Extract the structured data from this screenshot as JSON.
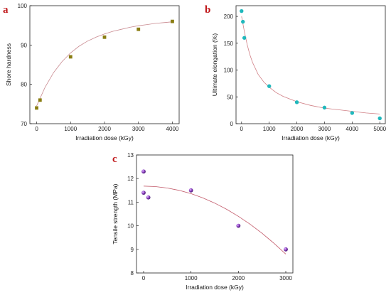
{
  "chart_data": [
    {
      "type": "scatter",
      "panel_label": "a",
      "xlabel": "Irradiation dose (kGy)",
      "ylabel": "Shore hardness",
      "xlim": [
        -200,
        4200
      ],
      "ylim": [
        70,
        100
      ],
      "xticks": [
        0,
        1000,
        2000,
        3000,
        4000
      ],
      "yticks": [
        70,
        80,
        90,
        100
      ],
      "marker": "square",
      "marker_color": "#8a7d12",
      "fit_color": "#c98a90",
      "series": [
        {
          "x": [
            0,
            100,
            1000,
            2000,
            3000,
            4000
          ],
          "y": [
            74,
            76,
            87,
            92,
            94,
            96
          ]
        }
      ],
      "fit": {
        "x": [
          0,
          250,
          500,
          750,
          1000,
          1250,
          1500,
          1750,
          2000,
          2250,
          2500,
          2750,
          3000,
          3250,
          3500,
          3750,
          4000
        ],
        "y": [
          74.5,
          79.3,
          83.0,
          85.8,
          88.0,
          89.7,
          91.0,
          92.0,
          92.8,
          93.5,
          94.0,
          94.5,
          94.9,
          95.2,
          95.5,
          95.7,
          95.9
        ]
      },
      "grid": false
    },
    {
      "type": "scatter",
      "panel_label": "b",
      "xlabel": "Irradiation dose (kGy)",
      "ylabel": "Ultimate elongation (%)",
      "xlim": [
        -200,
        5200
      ],
      "ylim": [
        0,
        220
      ],
      "xticks": [
        0,
        1000,
        2000,
        3000,
        4000,
        5000
      ],
      "yticks": [
        0,
        50,
        100,
        150,
        200
      ],
      "marker": "circle",
      "marker_color": "#20b8bc",
      "fit_color": "#d07f85",
      "series": [
        {
          "x": [
            0,
            50,
            100,
            1000,
            2000,
            3000,
            4000,
            5000
          ],
          "y": [
            210,
            190,
            160,
            70,
            40,
            30,
            20,
            10
          ]
        }
      ],
      "fit": {
        "x": [
          0,
          100,
          200,
          300,
          400,
          600,
          800,
          1000,
          1250,
          1500,
          2000,
          2500,
          3000,
          3500,
          4000,
          4500,
          5000
        ],
        "y": [
          200,
          172,
          148,
          129,
          114,
          92,
          78,
          68,
          58,
          51,
          41,
          34,
          29,
          26,
          23,
          20,
          18
        ]
      },
      "grid": false
    },
    {
      "type": "scatter",
      "panel_label": "c",
      "xlabel": "Irradiation dose (kGy)",
      "ylabel": "Tensile strength (MPa)",
      "xlim": [
        -150,
        3150
      ],
      "ylim": [
        8,
        13
      ],
      "xticks": [
        0,
        1000,
        2000,
        3000
      ],
      "yticks": [
        8,
        9,
        10,
        11,
        12,
        13
      ],
      "marker": "sphere",
      "marker_color": "#8e3fc4",
      "fit_color": "#c25a6a",
      "series": [
        {
          "x": [
            0,
            0,
            100,
            1000,
            2000,
            3000
          ],
          "y": [
            12.3,
            11.4,
            11.2,
            11.5,
            10.0,
            9.0
          ]
        }
      ],
      "fit": {
        "x": [
          0,
          250,
          500,
          750,
          1000,
          1250,
          1500,
          1750,
          2000,
          2250,
          2500,
          2750,
          3000
        ],
        "y": [
          11.68,
          11.66,
          11.6,
          11.5,
          11.36,
          11.18,
          10.96,
          10.7,
          10.4,
          10.06,
          9.68,
          9.26,
          8.8
        ]
      },
      "grid": false
    }
  ]
}
